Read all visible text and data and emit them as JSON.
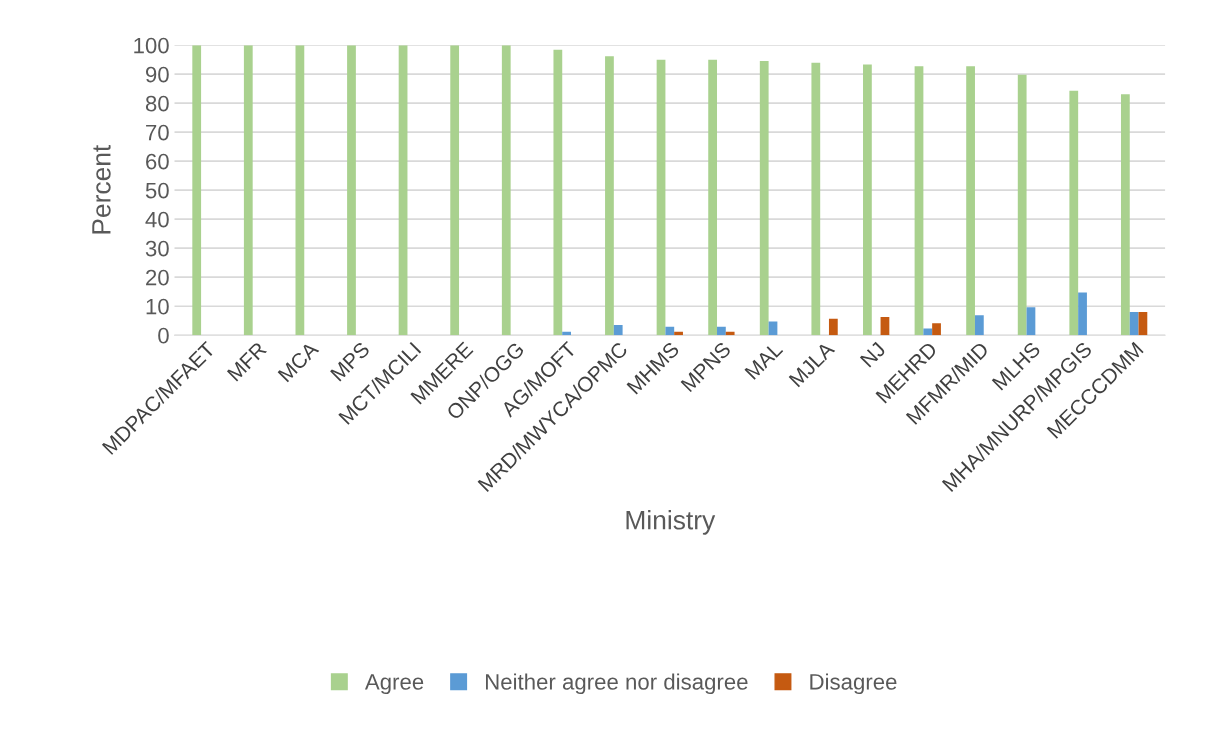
{
  "chart_data": {
    "type": "bar",
    "xlabel": "Ministry",
    "ylabel": "Percent",
    "categories": [
      "MDPAC/MFAET",
      "MFR",
      "MCA",
      "MPS",
      "MCT/MCILI",
      "MMERE",
      "ONP/OGG",
      "AG/MOFT",
      "MRD/MWYCA/OPMC",
      "MHMS",
      "MPNS",
      "MAL",
      "MJLA",
      "NJ",
      "MEHRD",
      "MFMR/MID",
      "MLHS",
      "MHA/MNURP/MPGIS",
      "MECCCDMM"
    ],
    "series": [
      {
        "name": "Agree",
        "color": "#a9d18e",
        "values": [
          100,
          100,
          100,
          100,
          100,
          100,
          100,
          98.4,
          96.2,
          95.0,
          95.0,
          94.5,
          93.9,
          93.3,
          92.7,
          92.7,
          89.8,
          84.3,
          83.1
        ]
      },
      {
        "name": "Neither agree nor disagree",
        "color": "#5b9bd5",
        "values": [
          0,
          0,
          0,
          0,
          0,
          0,
          0,
          1.2,
          3.5,
          2.9,
          2.9,
          4.7,
          0,
          0,
          2.3,
          6.9,
          9.6,
          14.7,
          8.0
        ]
      },
      {
        "name": "Disagree",
        "color": "#c55a11",
        "values": [
          0,
          0,
          0,
          0,
          0,
          0,
          0,
          0,
          0,
          1.2,
          1.2,
          0,
          5.7,
          6.3,
          4.1,
          0,
          0,
          0,
          8.0
        ]
      }
    ],
    "ylim": [
      0,
      100
    ],
    "yticks": [
      0,
      10,
      20,
      30,
      40,
      50,
      60,
      70,
      80,
      90,
      100
    ],
    "grid": "y",
    "legend": "bottom"
  }
}
